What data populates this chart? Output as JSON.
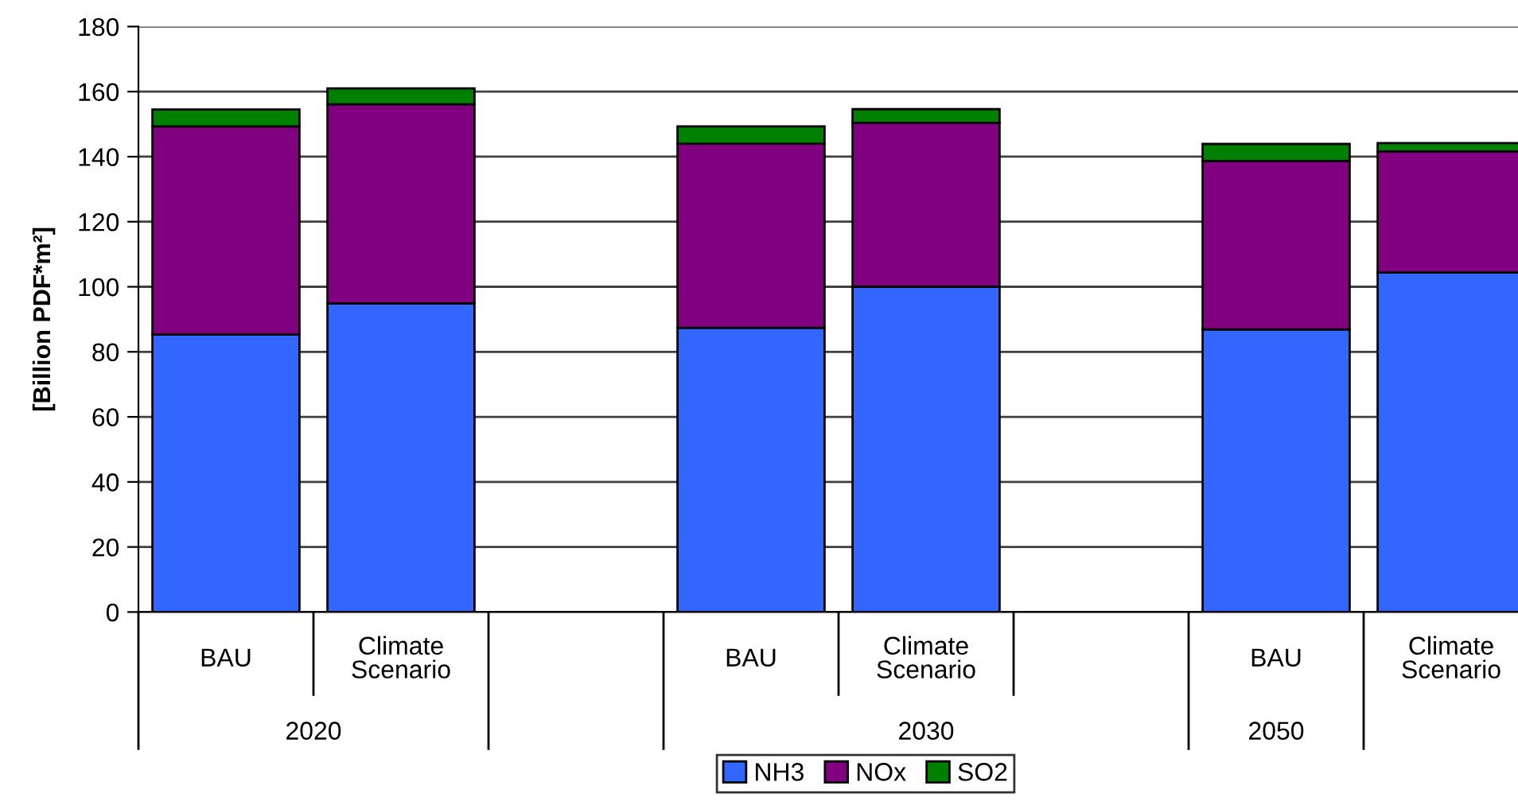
{
  "chart_data": {
    "type": "bar",
    "stacked": true,
    "ylabel": "[Billion PDF*m²]",
    "categories": [
      "BAU",
      "Climate\nScenario",
      null,
      "BAU",
      "Climate\nScenario",
      null,
      "BAU",
      "Climate\nScenario"
    ],
    "series": [
      {
        "name": "NH3",
        "color": "#3366ff",
        "values": [
          85.3,
          94.9,
          null,
          87.4,
          100.0,
          null,
          86.9,
          104.4
        ]
      },
      {
        "name": "NOx",
        "color": "#800080",
        "values": [
          64.0,
          61.2,
          null,
          56.6,
          50.4,
          null,
          51.8,
          37.2
        ]
      },
      {
        "name": "SO2",
        "color": "#008000",
        "values": [
          5.2,
          4.9,
          null,
          5.3,
          4.2,
          null,
          5.2,
          2.6
        ]
      }
    ],
    "annotations": [
      "2020",
      "2030",
      "2050"
    ],
    "ylim": [
      0,
      180
    ],
    "yticks": [
      0,
      20,
      40,
      60,
      80,
      100,
      120,
      140,
      160,
      180
    ],
    "grid": "y",
    "legend": "bottom"
  }
}
